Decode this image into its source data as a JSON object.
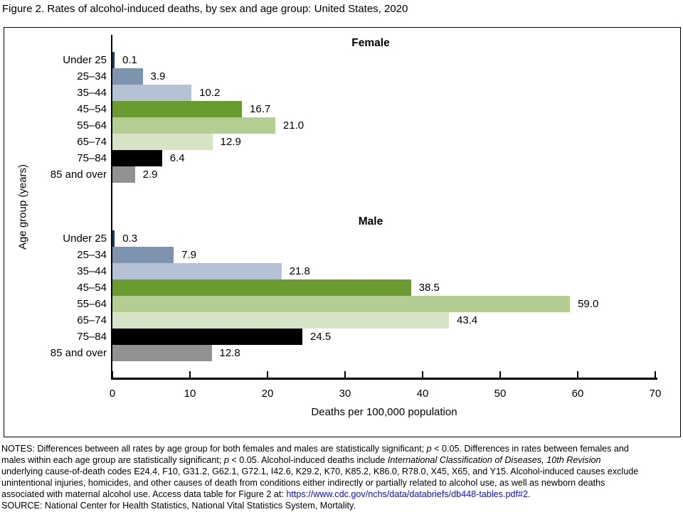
{
  "figure_title": "Figure 2. Rates of alcohol-induced deaths, by sex and age group: United States, 2020",
  "chart_data": {
    "type": "bar",
    "orientation": "horizontal",
    "title": "Figure 2. Rates of alcohol-induced deaths, by sex and age group: United States, 2020",
    "xlabel": "Deaths per 100,000 population",
    "ylabel": "Age group (years)",
    "xlim": [
      0,
      70
    ],
    "xticks": [
      0,
      10,
      20,
      30,
      40,
      50,
      60,
      70
    ],
    "grid": false,
    "legend_position": "group headers inside plot area",
    "categories": [
      "Under 25",
      "25–34",
      "35–44",
      "45–54",
      "55–64",
      "65–74",
      "75–84",
      "85 and over"
    ],
    "series": [
      {
        "name": "Female",
        "values": [
          0.1,
          3.9,
          10.2,
          16.7,
          21.0,
          12.9,
          6.4,
          2.9
        ]
      },
      {
        "name": "Male",
        "values": [
          0.3,
          7.9,
          21.8,
          38.5,
          59.0,
          43.4,
          24.5,
          12.8
        ]
      }
    ],
    "bar_colors_by_category": [
      "#1f3864",
      "#7e93ae",
      "#b5c1d4",
      "#699b31",
      "#b3cd93",
      "#d7e3c6",
      "#000000",
      "#8f9193"
    ],
    "value_label_format": "one_decimal"
  },
  "notes": {
    "lines": [
      [
        {
          "t": "NOTES: Differences between all rates by age group for both females and males are statistically significant; ",
          "s": "n"
        },
        {
          "t": "p",
          "s": "i"
        },
        {
          "t": " < 0.05. Differences in rates between females and",
          "s": "n"
        }
      ],
      [
        {
          "t": "males within each age group are statistically significant; ",
          "s": "n"
        },
        {
          "t": "p",
          "s": "i"
        },
        {
          "t": " < 0.05. Alcohol-induced deaths include ",
          "s": "n"
        },
        {
          "t": "International Classification of Diseases, 10th Revision",
          "s": "i"
        }
      ],
      [
        {
          "t": "underlying cause-of-death codes E24.4, F10, G31.2, G62.1, G72.1, I42.6, K29.2, K70, K85.2, K86.0, R78.0, X45, X65, and Y15. Alcohol-induced causes exclude",
          "s": "n"
        }
      ],
      [
        {
          "t": "unintentional injuries, homicides, and other causes of death from conditions either indirectly or partially related to alcohol use, as well as newborn deaths",
          "s": "n"
        }
      ],
      [
        {
          "t": "associated with maternal alcohol use. Access data table for Figure 2 at: ",
          "s": "n"
        },
        {
          "t": "https://www.cdc.gov/nchs/data/databriefs/db448-tables.pdf#2",
          "s": "link"
        },
        {
          "t": ".",
          "s": "n"
        }
      ],
      [
        {
          "t": "SOURCE: National Center for Health Statistics, National Vital Statistics System, Mortality.",
          "s": "n"
        }
      ]
    ],
    "link_color": "#0b0bee"
  }
}
